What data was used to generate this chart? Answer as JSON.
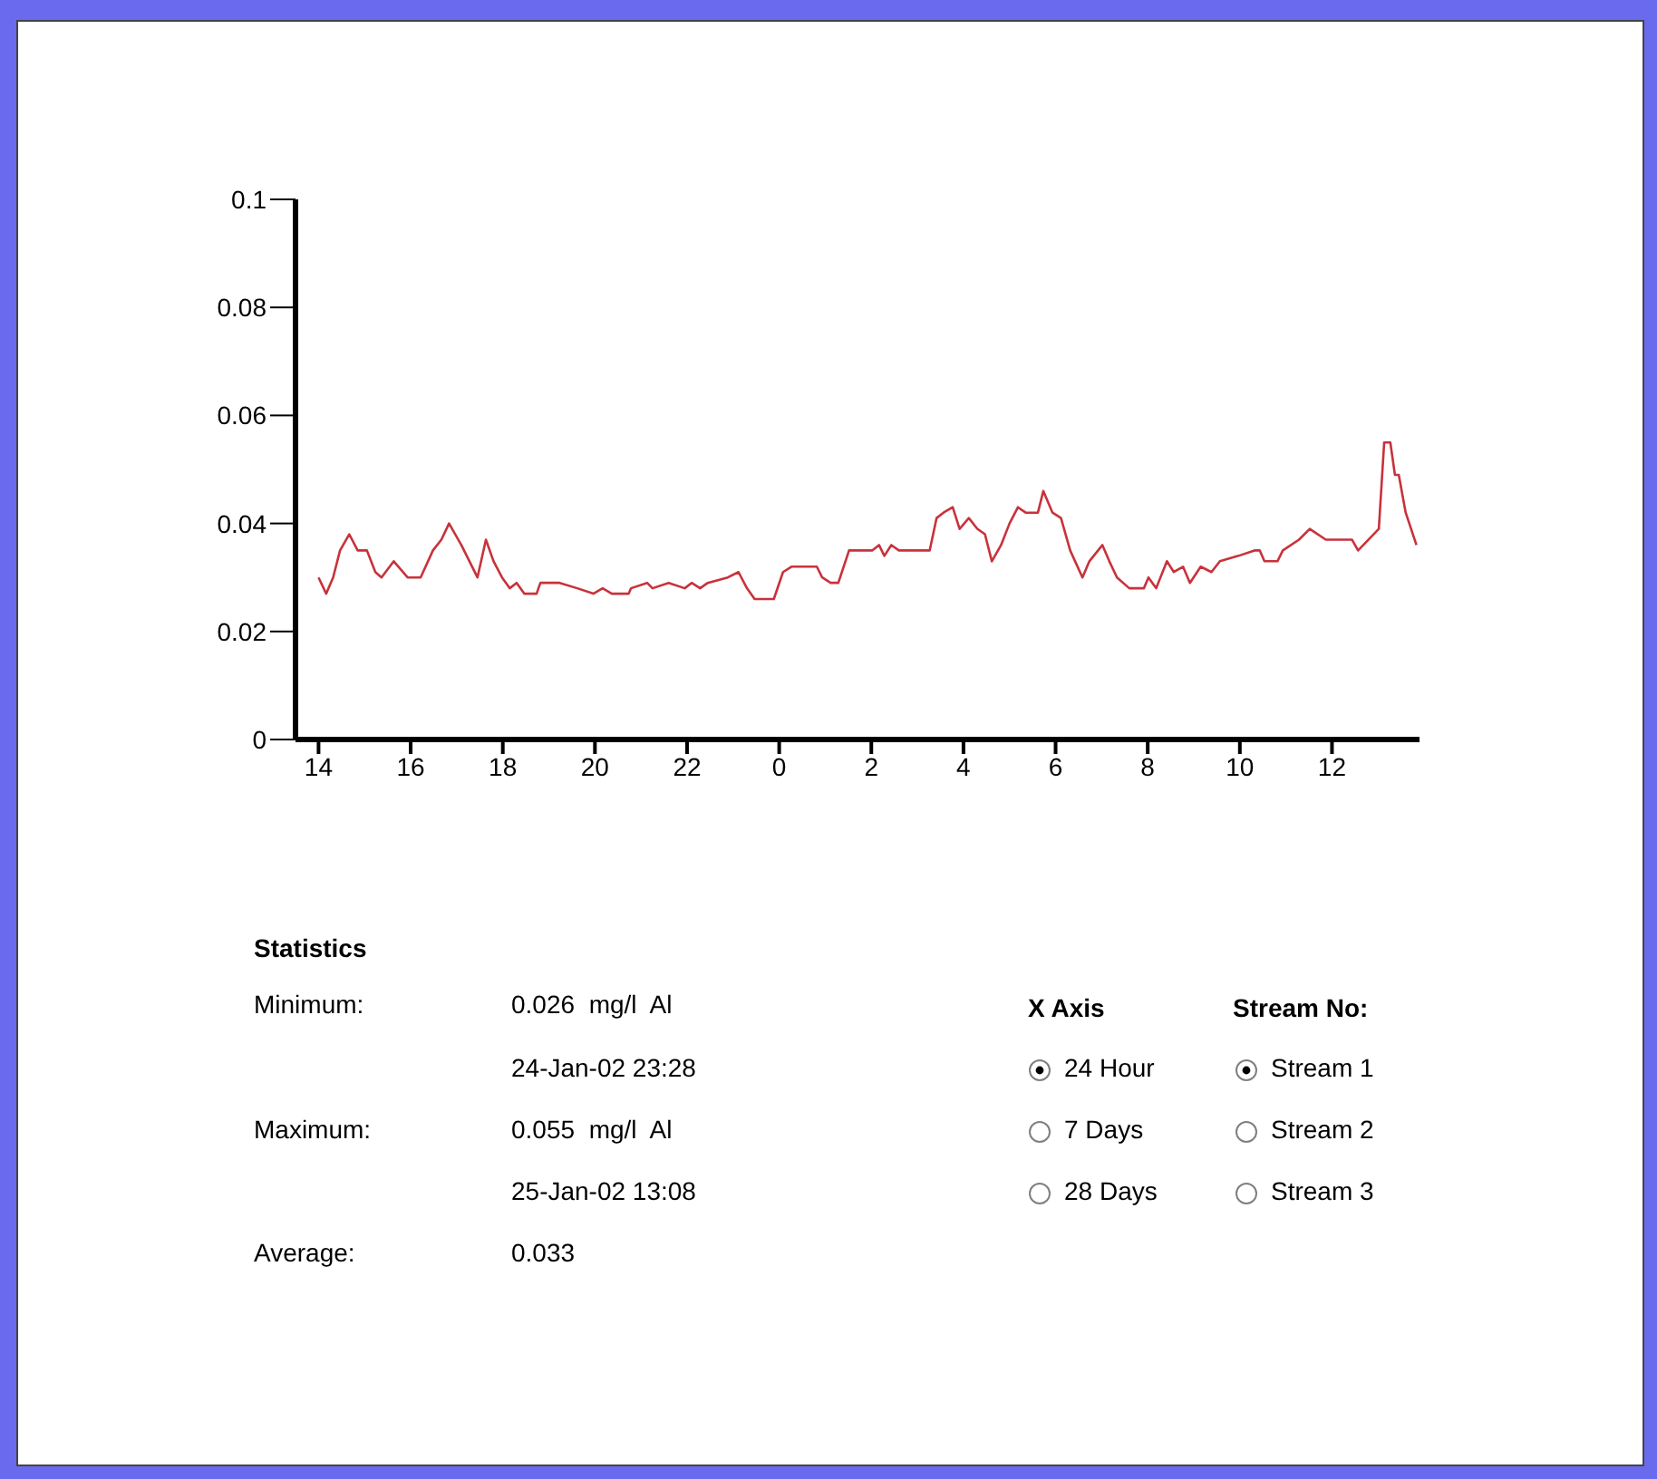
{
  "chart_data": {
    "type": "line",
    "x": [
      "--01-24T14:00",
      "--01-24T14:10",
      "--01-24T14:19",
      "--01-24T14:28",
      "--01-24T14:40",
      "--01-24T14:51",
      "--01-24T15:03",
      "--01-24T15:14",
      "--01-24T15:22",
      "--01-24T15:38",
      "--01-24T15:56",
      "--01-24T16:13",
      "--01-24T16:29",
      "--01-24T16:40",
      "--01-24T16:50",
      "--01-24T17:06",
      "--01-24T17:27",
      "--01-24T17:38",
      "--01-24T17:48",
      "--01-24T17:59",
      "--01-24T18:09",
      "--01-24T18:18",
      "--01-24T18:28",
      "--01-24T18:44",
      "--01-24T18:49",
      "--01-24T19:14",
      "--01-24T19:37",
      "--01-24T19:58",
      "--01-24T20:10",
      "--01-24T20:22",
      "--01-24T20:44",
      "--01-24T20:47",
      "--01-24T21:08",
      "--01-24T21:15",
      "--01-24T21:36",
      "--01-24T21:57",
      "--01-24T22:06",
      "--01-24T22:17",
      "--01-24T22:27",
      "--01-24T22:53",
      "--01-24T23:07",
      "--01-24T23:18",
      "--01-24T23:28",
      "--01-24T23:53",
      "--01-25T00:05",
      "--01-25T00:16",
      "--01-25T00:49",
      "--01-25T00:56",
      "--01-25T01:07",
      "--01-25T01:17",
      "--01-25T01:31",
      "--01-25T01:38",
      "--01-25T02:01",
      "--01-25T02:10",
      "--01-25T02:17",
      "--01-25T02:26",
      "--01-25T02:36",
      "--01-25T02:47",
      "--01-25T03:16",
      "--01-25T03:25",
      "--01-25T03:34",
      "--01-25T03:46",
      "--01-25T03:55",
      "--01-25T04:07",
      "--01-25T04:18",
      "--01-25T04:28",
      "--01-25T04:37",
      "--01-25T04:49",
      "--01-25T05:00",
      "--01-25T05:11",
      "--01-25T05:21",
      "--01-25T05:37",
      "--01-25T05:44",
      "--01-25T05:56",
      "--01-25T06:07",
      "--01-25T06:19",
      "--01-25T06:35",
      "--01-25T06:44",
      "--01-25T07:01",
      "--01-25T07:10",
      "--01-25T07:20",
      "--01-25T07:36",
      "--01-25T07:55",
      "--01-25T08:01",
      "--01-25T08:11",
      "--01-25T08:25",
      "--01-25T08:34",
      "--01-25T08:46",
      "--01-25T08:55",
      "--01-25T09:09",
      "--01-25T09:23",
      "--01-25T09:34",
      "--01-25T09:58",
      "--01-25T10:19",
      "--01-25T10:26",
      "--01-25T10:32",
      "--01-25T10:49",
      "--01-25T10:56",
      "--01-25T11:17",
      "--01-25T11:31",
      "--01-25T11:52",
      "--01-25T12:26",
      "--01-25T12:34",
      "--01-25T13:01",
      "--01-25T13:08",
      "--01-25T13:16",
      "--01-25T13:22",
      "--01-25T13:27",
      "--01-25T13:36",
      "--01-25T13:50"
    ],
    "series": [
      {
        "color": "#c8323c",
        "values": [
          0.03,
          0.027,
          0.03,
          0.035,
          0.038,
          0.035,
          0.035,
          0.031,
          0.03,
          0.033,
          0.03,
          0.03,
          0.035,
          0.037,
          0.04,
          0.036,
          0.03,
          0.037,
          0.033,
          0.03,
          0.028,
          0.029,
          0.027,
          0.027,
          0.029,
          0.029,
          0.028,
          0.027,
          0.028,
          0.027,
          0.027,
          0.028,
          0.029,
          0.028,
          0.029,
          0.028,
          0.029,
          0.028,
          0.029,
          0.03,
          0.031,
          0.028,
          0.026,
          0.026,
          0.031,
          0.032,
          0.032,
          0.03,
          0.029,
          0.029,
          0.035,
          0.035,
          0.035,
          0.036,
          0.034,
          0.036,
          0.035,
          0.035,
          0.035,
          0.041,
          0.042,
          0.043,
          0.039,
          0.041,
          0.039,
          0.038,
          0.033,
          0.036,
          0.04,
          0.043,
          0.042,
          0.042,
          0.046,
          0.042,
          0.041,
          0.035,
          0.03,
          0.033,
          0.036,
          0.033,
          0.03,
          0.028,
          0.028,
          0.03,
          0.028,
          0.033,
          0.031,
          0.032,
          0.029,
          0.032,
          0.031,
          0.033,
          0.034,
          0.035,
          0.035,
          0.033,
          0.033,
          0.035,
          0.037,
          0.039,
          0.037,
          0.037,
          0.035,
          0.039,
          0.055,
          0.055,
          0.049,
          0.049,
          0.042,
          0.036
        ]
      }
    ],
    "xlim": [
      "--01-24T13:30",
      "--01-25T13:54"
    ],
    "xticks": [
      {
        "value": "--01-24T14:00",
        "label": "14"
      },
      {
        "value": "--01-24T16:00",
        "label": "16"
      },
      {
        "value": "--01-24T18:00",
        "label": "18"
      },
      {
        "value": "--01-24T20:00",
        "label": "20"
      },
      {
        "value": "--01-24T22:00",
        "label": "22"
      },
      {
        "value": "--01-25T00:00",
        "label": "0"
      },
      {
        "value": "--01-25T02:00",
        "label": "2"
      },
      {
        "value": "--01-25T04:00",
        "label": "4"
      },
      {
        "value": "--01-25T06:00",
        "label": "6"
      },
      {
        "value": "--01-25T08:00",
        "label": "8"
      },
      {
        "value": "--01-25T10:00",
        "label": "10"
      },
      {
        "value": "--01-25T12:00",
        "label": "12"
      }
    ],
    "ylim": [
      0,
      0.1
    ],
    "yticks": [
      0,
      0.02,
      0.04,
      0.06,
      0.08,
      0.1
    ],
    "marker": "none",
    "line_style": "solid",
    "annotations": [
      "Statistics",
      "Minimum:",
      "0.026  mg/l  Al",
      "24-Jan-02 23:28",
      "Maximum:",
      "0.055  mg/l  Al",
      "25-Jan-02 13:08",
      "Average:",
      "0.033",
      "X Axis",
      "24 Hour",
      "7 Days",
      "28 Days",
      "Stream No:",
      "Stream 1",
      "Stream 2",
      "Stream 3"
    ]
  }
}
